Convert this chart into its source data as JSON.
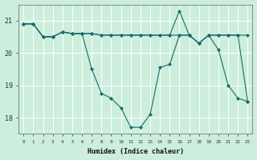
{
  "xlabel": "Humidex (Indice chaleur)",
  "bg_color": "#cceedd",
  "line_color": "#1a6b6b",
  "grid_color": "#ffffff",
  "x_values": [
    0,
    1,
    2,
    3,
    4,
    5,
    6,
    7,
    8,
    9,
    10,
    11,
    12,
    13,
    14,
    15,
    16,
    17,
    18,
    19,
    20,
    21,
    22,
    23
  ],
  "s_flat": [
    20.9,
    20.9,
    20.5,
    20.5,
    20.65,
    20.6,
    20.6,
    20.6,
    20.55,
    20.55,
    20.55,
    20.55,
    20.55,
    20.55,
    20.55,
    20.55,
    20.55,
    20.55,
    20.3,
    20.55,
    20.55,
    20.55,
    20.55,
    20.55
  ],
  "s_dip": [
    20.9,
    20.9,
    20.5,
    20.5,
    20.65,
    20.6,
    20.6,
    19.5,
    18.75,
    18.6,
    18.3,
    17.7,
    17.7,
    18.1,
    19.55,
    19.65,
    20.55,
    20.55,
    20.3,
    20.55,
    20.1,
    19.0,
    18.6,
    18.5
  ],
  "s_peak": [
    20.9,
    20.9,
    20.5,
    20.5,
    20.65,
    20.6,
    20.6,
    20.6,
    20.55,
    20.55,
    20.55,
    20.55,
    20.55,
    20.55,
    20.55,
    20.55,
    21.3,
    20.55,
    20.3,
    20.55,
    20.55,
    20.55,
    20.55,
    18.5
  ],
  "ylim": [
    17.5,
    21.5
  ],
  "xlim": [
    -0.5,
    23.5
  ],
  "yticks": [
    18,
    19,
    20,
    21
  ],
  "ytick_labels": [
    "18",
    "19",
    "20",
    "21"
  ]
}
